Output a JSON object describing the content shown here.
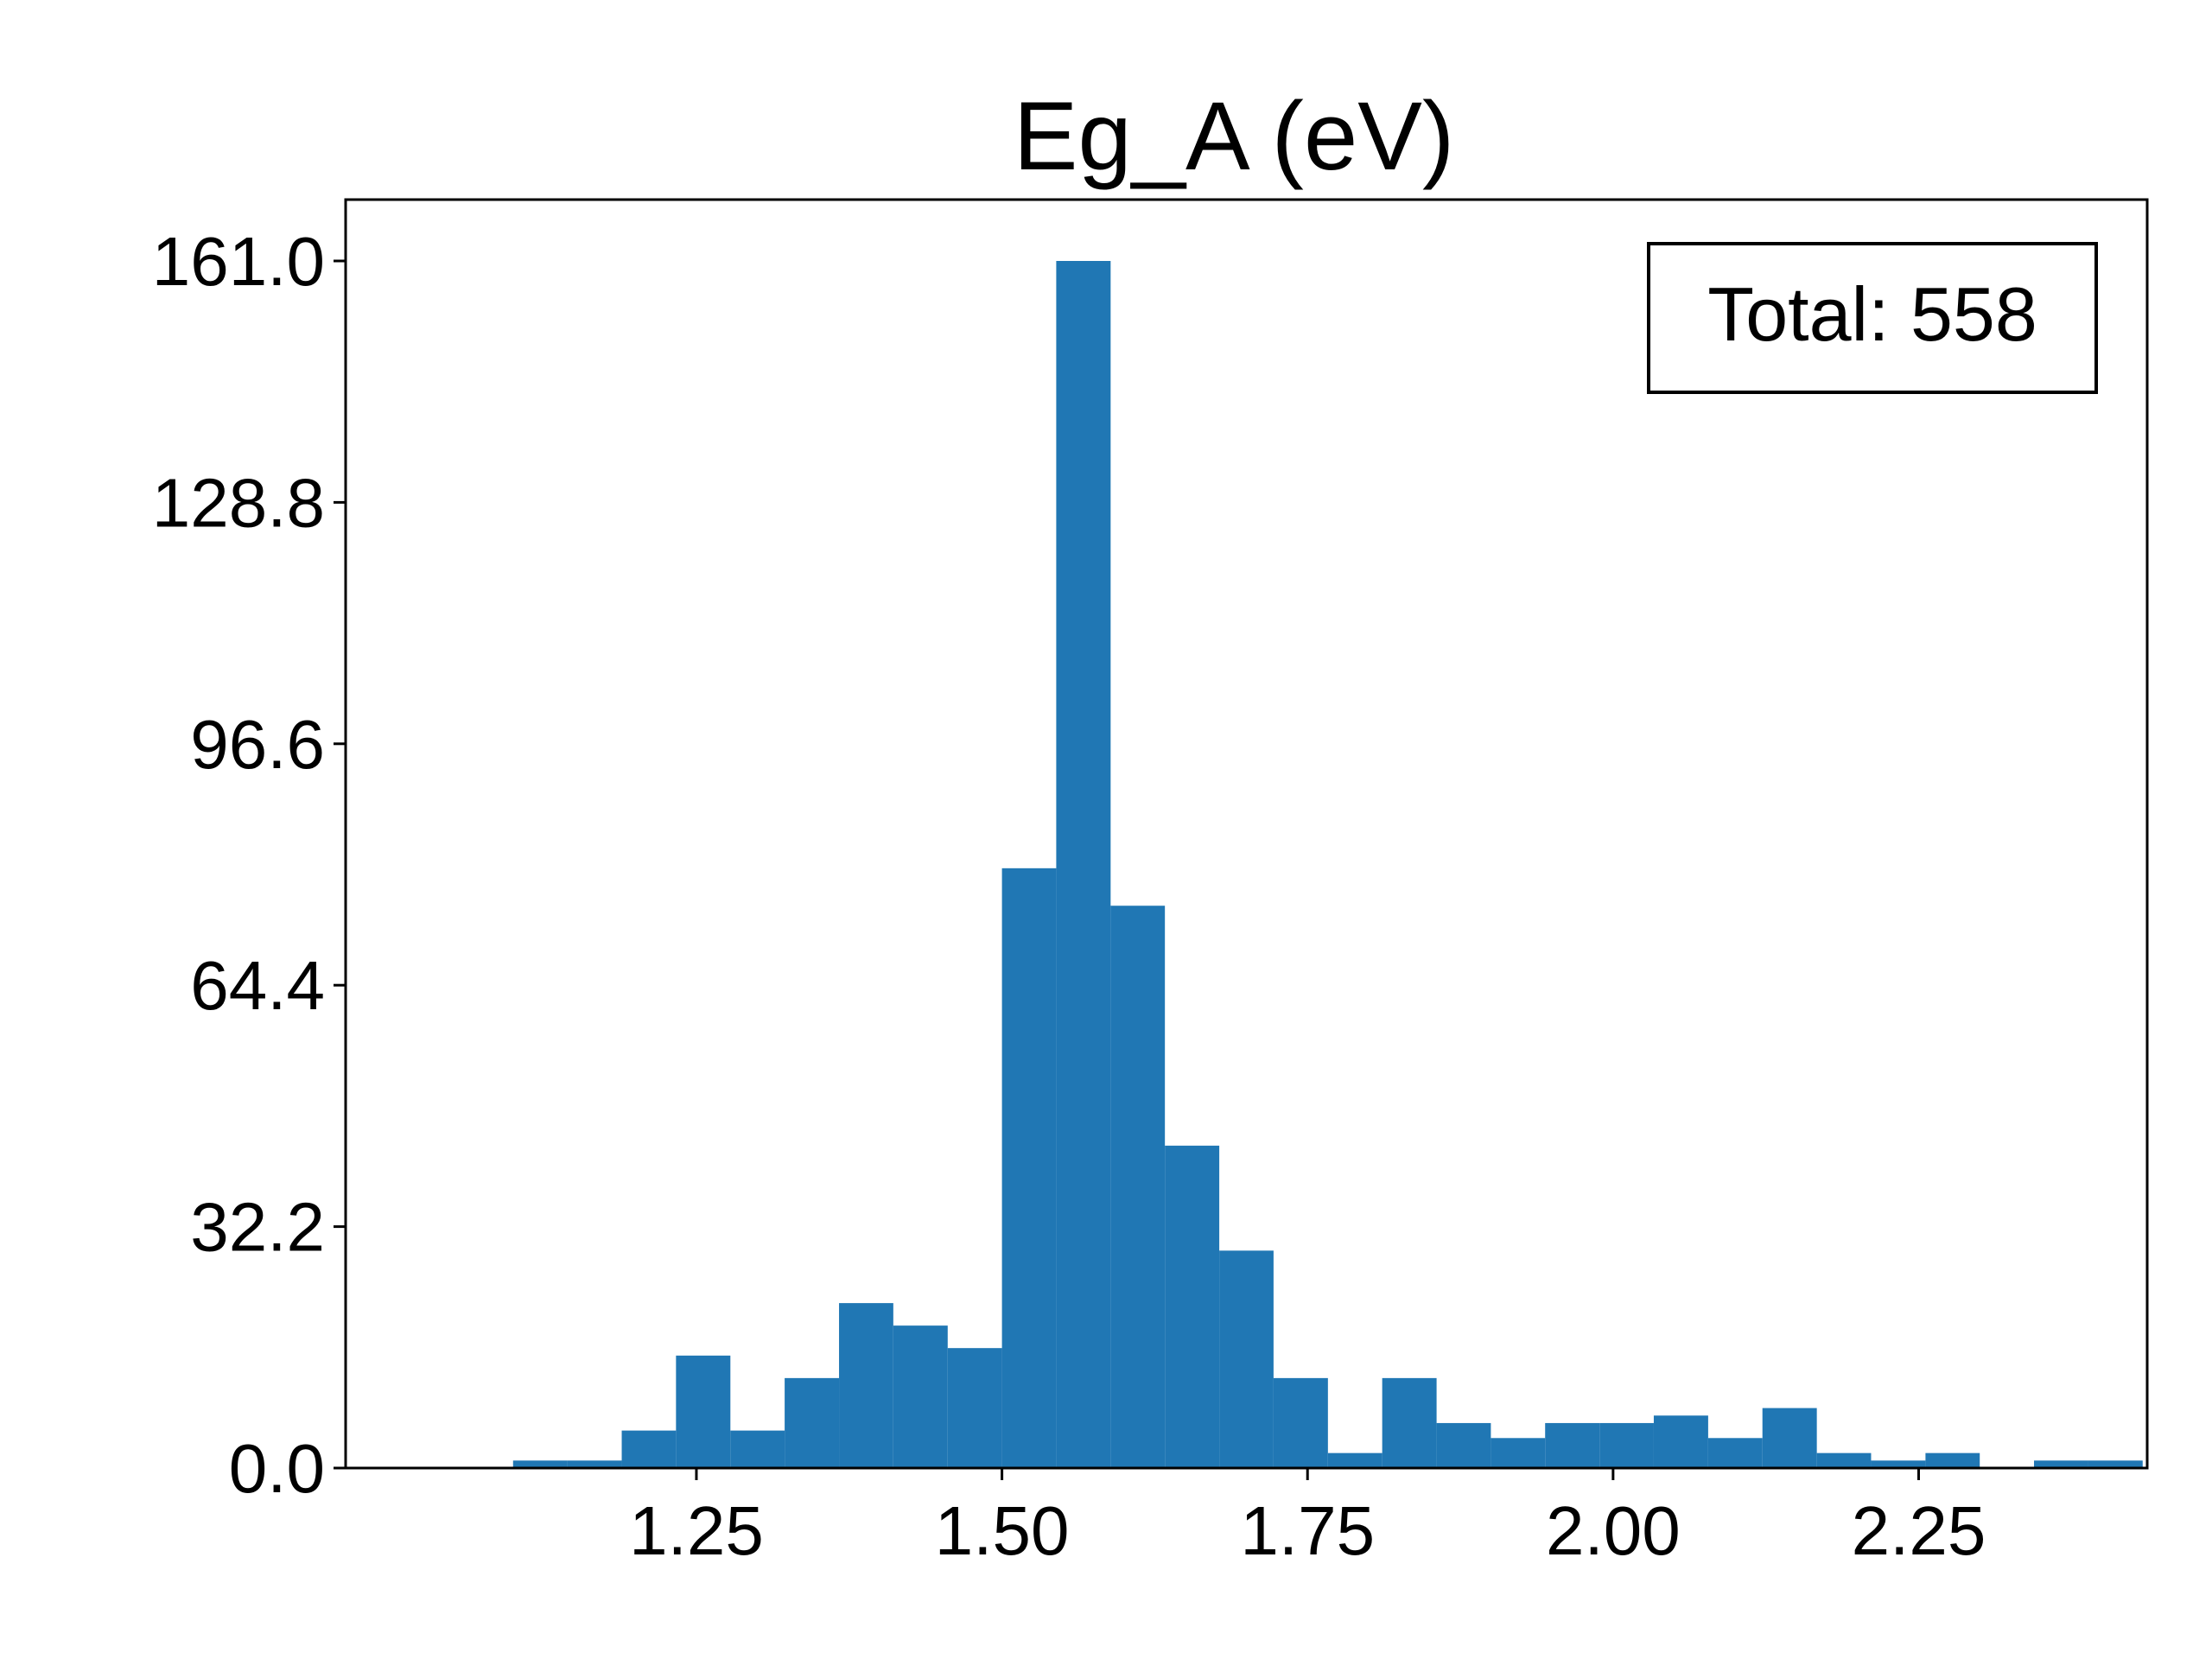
{
  "chart_data": {
    "type": "bar",
    "title": "Eg_A (eV)",
    "xlabel": "",
    "ylabel": "",
    "bin_edges": [
      1.1,
      1.1444,
      1.1889,
      1.2333,
      1.2778,
      1.3222,
      1.3667,
      1.4111,
      1.4556,
      1.5,
      1.5444,
      1.5889,
      1.6333,
      1.6778,
      1.7222,
      1.7667,
      1.8111,
      1.8556,
      1.9,
      1.9444,
      1.9889,
      2.0333,
      2.0778,
      2.1222,
      2.1667,
      2.2111,
      2.2556,
      2.3,
      2.3444,
      2.3889,
      2.4333
    ],
    "counts": [
      1,
      1,
      5,
      15,
      5,
      12,
      22,
      19,
      16,
      80,
      161,
      75,
      43,
      29,
      12,
      2,
      12,
      6,
      4,
      6,
      6,
      7,
      4,
      8,
      2,
      1,
      2,
      0,
      1,
      1
    ],
    "xlim": [
      0.963,
      2.437
    ],
    "ylim": [
      0,
      161
    ],
    "x_ticks": [
      "1.25",
      "1.50",
      "1.75",
      "2.00",
      "2.25"
    ],
    "x_tick_values": [
      1.25,
      1.5,
      1.75,
      2.0,
      2.25
    ],
    "y_ticks": [
      "0.0",
      "32.2",
      "64.4",
      "96.6",
      "128.8",
      "161.0"
    ],
    "y_tick_values": [
      0,
      32.2,
      64.4,
      96.6,
      128.8,
      161.0
    ],
    "annotation": "Total: 558",
    "bar_color": "#2077b4",
    "grid": false,
    "legend": false
  }
}
